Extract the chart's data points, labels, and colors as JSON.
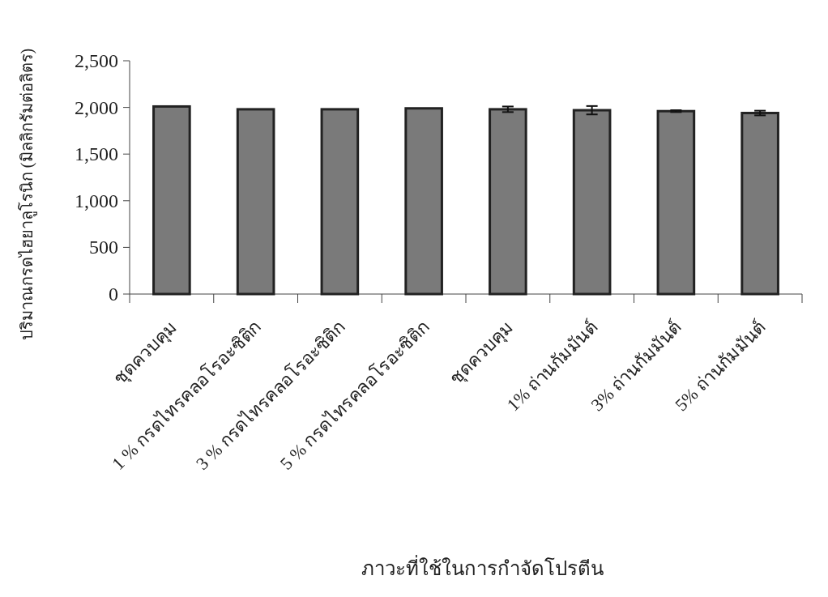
{
  "chart_data": {
    "type": "bar",
    "xlabel": "ภาวะที่ใช้ในการกำจัดโปรตีน",
    "ylabel": "ปริมาณกรดไฮยาลูโรนิก (มิลลิกรัมต่อลิตร)",
    "categories": [
      "ชุดควบคุม",
      "1 % กรดไทรคลอโรอะซิติก",
      "3 % กรดไทรคลอโรอะซิติก",
      "5 % กรดไทรคลอโรอะซิติก",
      "ชุดควบคุม",
      "1% ถ่านกัมมันต์",
      "3% ถ่านกัมมันต์",
      "5% ถ่านกัมมันต์"
    ],
    "values": [
      2010,
      1980,
      1980,
      1990,
      1980,
      1970,
      1960,
      1940
    ],
    "errors": [
      null,
      null,
      null,
      null,
      30,
      45,
      10,
      25
    ],
    "color": "#7a7a7a",
    "ylim": [
      0,
      2500
    ],
    "yticks": [
      {
        "value": 0,
        "label": "0"
      },
      {
        "value": 500,
        "label": "500"
      },
      {
        "value": 1000,
        "label": "1,000"
      },
      {
        "value": 1500,
        "label": "1,500"
      },
      {
        "value": 2000,
        "label": "2,000"
      },
      {
        "value": 2500,
        "label": "2,500"
      }
    ],
    "grid": false
  }
}
